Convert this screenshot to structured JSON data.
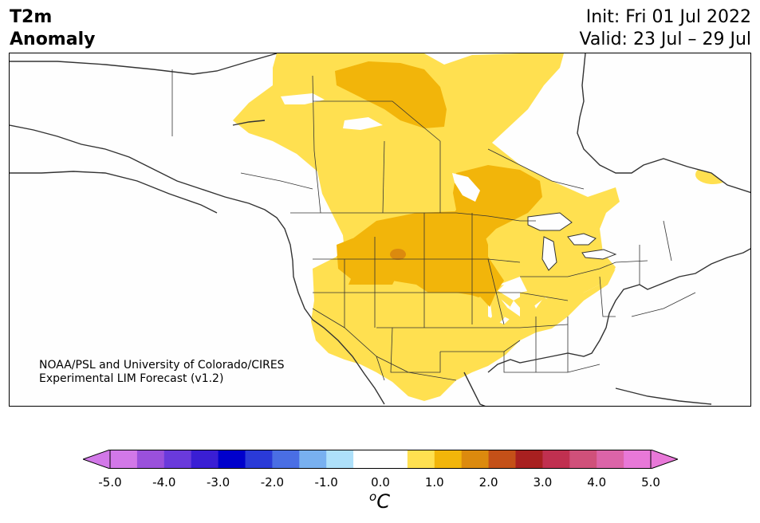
{
  "title": {
    "variable": "T2m",
    "field": "Anomaly",
    "init": "Init: Fri 01 Jul 2022",
    "valid": "Valid: 23 Jul – 29 Jul"
  },
  "credit": {
    "line1": "NOAA/PSL and University of Colorado/CIRES",
    "line2": "Experimental LIM Forecast (v1.2)"
  },
  "colorbar": {
    "ticks": [
      "-5.0",
      "-4.0",
      "-3.0",
      "-2.0",
      "-1.0",
      "0.0",
      "1.0",
      "2.0",
      "3.0",
      "4.0",
      "5.0"
    ],
    "unit_base": "C",
    "unit_sup": "o",
    "colors": [
      "#d278e8",
      "#9a50dc",
      "#6a3adc",
      "#3a1ed4",
      "#0000cc",
      "#2a3ad8",
      "#4a6ee4",
      "#78b0f0",
      "#aee0fa",
      "#ffffff",
      "#ffffff",
      "#ffe050",
      "#f2b50a",
      "#dc8a0e",
      "#c45018",
      "#a82020",
      "#c03050",
      "#d0507a",
      "#dc64a8",
      "#e878d8"
    ],
    "low_extend_color": "#d278e8",
    "high_extend_color": "#e878d8"
  },
  "map": {
    "region": "North America",
    "anomaly_colors": {
      "level_0_5": "#ffe050",
      "level_1_0": "#f2b50a",
      "level_1_5": "#dc8a0e"
    },
    "land_color": "#fefefe",
    "border_color": "#333333"
  }
}
